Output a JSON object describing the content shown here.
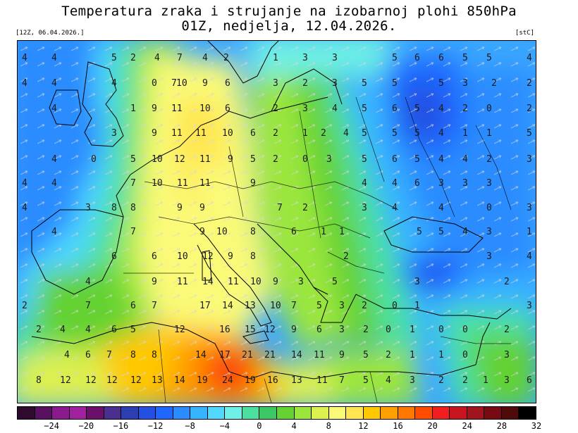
{
  "header": {
    "title_line1": "Temperatura zraka i strujanje na izobarnoj plohi 850hPa",
    "title_line2": "01Z, nedjelja, 12.04.2026.",
    "run_label": "[12Z, 06.04.2026.]",
    "unit_label": "[stC]"
  },
  "colorbar": {
    "colors": [
      "#2d0a2e",
      "#5a1060",
      "#8c1a8f",
      "#a020a0",
      "#6a0f6a",
      "#4b2f8f",
      "#2d3fb0",
      "#2350e0",
      "#1e68ff",
      "#2a8cff",
      "#38b4ff",
      "#50d8ff",
      "#6ef0e6",
      "#4be0a0",
      "#3cc864",
      "#64d232",
      "#9be63c",
      "#dcf050",
      "#fafa78",
      "#ffe650",
      "#ffc800",
      "#ffa000",
      "#ff7800",
      "#ff4b00",
      "#f01e1e",
      "#c8141e",
      "#a0141e",
      "#780a14",
      "#500a0a",
      "#000000"
    ],
    "ticks": [
      "−24",
      "−20",
      "−16",
      "−12",
      "−8",
      "−4",
      "0",
      "4",
      "8",
      "12",
      "16",
      "20",
      "24",
      "28",
      "32"
    ]
  },
  "map": {
    "legend_scale": "temperature_850hPa_stC",
    "values": [
      {
        "t": "4",
        "c": "gx0"
      },
      {
        "t": "4",
        "c": "gx1"
      },
      {
        "t": "5",
        "c": "gx2"
      },
      {
        "t": "2",
        "c": "gx3"
      },
      {
        "t": "4",
        "c": "gx4"
      },
      {
        "t": "7",
        "c": "gx5"
      },
      {
        "t": "4",
        "c": "gx6"
      },
      {
        "t": "2",
        "c": "gx7"
      },
      {
        "t": "1",
        "c": "gx8"
      },
      {
        "t": "3",
        "c": "gx9"
      },
      {
        "t": "3",
        "c": "gx10"
      },
      {
        "t": "5",
        "c": "gx11"
      },
      {
        "t": "6",
        "c": "gx12"
      },
      {
        "t": "6",
        "c": "gx13"
      },
      {
        "t": "5",
        "c": "gx14"
      },
      {
        "t": "5",
        "c": "gx15"
      },
      {
        "t": "4",
        "c": "gx16"
      },
      {
        "t": "4",
        "c": "r1a"
      },
      {
        "t": "4",
        "c": "r1b"
      },
      {
        "t": "4",
        "c": "r1c"
      },
      {
        "t": "0",
        "c": "r1d"
      },
      {
        "t": "7",
        "c": "r1e"
      },
      {
        "t": "10",
        "c": "r1f"
      },
      {
        "t": "9",
        "c": "r1g"
      },
      {
        "t": "6",
        "c": "r1h"
      },
      {
        "t": "3",
        "c": "r1i"
      },
      {
        "t": "2",
        "c": "r1j"
      },
      {
        "t": "3",
        "c": "r1k"
      },
      {
        "t": "5",
        "c": "r1l"
      },
      {
        "t": "5",
        "c": "r1m"
      },
      {
        "t": "5",
        "c": "r1n"
      },
      {
        "t": "3",
        "c": "r1o"
      },
      {
        "t": "2",
        "c": "r1p"
      },
      {
        "t": "2",
        "c": "r1q"
      },
      {
        "t": "4",
        "c": "r2a"
      },
      {
        "t": "1",
        "c": "r2b"
      },
      {
        "t": "9",
        "c": "r2c"
      },
      {
        "t": "11",
        "c": "r2d"
      },
      {
        "t": "10",
        "c": "r2e"
      },
      {
        "t": "6",
        "c": "r2f"
      },
      {
        "t": "2",
        "c": "r2g"
      },
      {
        "t": "3",
        "c": "r2h"
      },
      {
        "t": "4",
        "c": "r2i"
      },
      {
        "t": "5",
        "c": "r2j"
      },
      {
        "t": "6",
        "c": "r2k"
      },
      {
        "t": "5",
        "c": "r2l"
      },
      {
        "t": "4",
        "c": "r2m"
      },
      {
        "t": "2",
        "c": "r2n"
      },
      {
        "t": "0",
        "c": "r2o"
      },
      {
        "t": "2",
        "c": "r2p"
      },
      {
        "t": "3",
        "c": "r3a"
      },
      {
        "t": "9",
        "c": "r3b"
      },
      {
        "t": "11",
        "c": "r3c"
      },
      {
        "t": "11",
        "c": "r3d"
      },
      {
        "t": "10",
        "c": "r3e"
      },
      {
        "t": "6",
        "c": "r3f"
      },
      {
        "t": "2",
        "c": "r3g"
      },
      {
        "t": "1",
        "c": "r3h"
      },
      {
        "t": "2",
        "c": "r3i"
      },
      {
        "t": "4",
        "c": "r3j"
      },
      {
        "t": "5",
        "c": "r3k"
      },
      {
        "t": "5",
        "c": "r3l"
      },
      {
        "t": "5",
        "c": "r3m"
      },
      {
        "t": "4",
        "c": "r3n"
      },
      {
        "t": "1",
        "c": "r3o"
      },
      {
        "t": "1",
        "c": "r3p"
      },
      {
        "t": "5",
        "c": "r3q"
      },
      {
        "t": "4",
        "c": "r4a"
      },
      {
        "t": "0",
        "c": "r4b"
      },
      {
        "t": "5",
        "c": "r4c"
      },
      {
        "t": "10",
        "c": "r4d"
      },
      {
        "t": "12",
        "c": "r4e"
      },
      {
        "t": "11",
        "c": "r4f"
      },
      {
        "t": "9",
        "c": "r4g"
      },
      {
        "t": "5",
        "c": "r4h"
      },
      {
        "t": "2",
        "c": "r4i"
      },
      {
        "t": "0",
        "c": "r4j"
      },
      {
        "t": "3",
        "c": "r4k"
      },
      {
        "t": "5",
        "c": "r4l"
      },
      {
        "t": "6",
        "c": "r4m"
      },
      {
        "t": "5",
        "c": "r4n"
      },
      {
        "t": "4",
        "c": "r4o"
      },
      {
        "t": "4",
        "c": "r4p"
      },
      {
        "t": "2",
        "c": "r4q"
      },
      {
        "t": "3",
        "c": "r4r"
      },
      {
        "t": "4",
        "c": "r5a"
      },
      {
        "t": "4",
        "c": "r5b"
      },
      {
        "t": "7",
        "c": "r5c"
      },
      {
        "t": "10",
        "c": "r5d"
      },
      {
        "t": "11",
        "c": "r5e"
      },
      {
        "t": "11",
        "c": "r5f"
      },
      {
        "t": "9",
        "c": "r5g"
      },
      {
        "t": "4",
        "c": "r5h"
      },
      {
        "t": "4",
        "c": "r5i"
      },
      {
        "t": "6",
        "c": "r5j"
      },
      {
        "t": "3",
        "c": "r5k"
      },
      {
        "t": "3",
        "c": "r5l"
      },
      {
        "t": "3",
        "c": "r5m"
      },
      {
        "t": "4",
        "c": "r6a"
      },
      {
        "t": "3",
        "c": "r6b"
      },
      {
        "t": "8",
        "c": "r6c"
      },
      {
        "t": "8",
        "c": "r6d"
      },
      {
        "t": "9",
        "c": "r6e"
      },
      {
        "t": "9",
        "c": "r6f"
      },
      {
        "t": "7",
        "c": "r6g"
      },
      {
        "t": "2",
        "c": "r6h"
      },
      {
        "t": "3",
        "c": "r6i"
      },
      {
        "t": "4",
        "c": "r6j"
      },
      {
        "t": "4",
        "c": "r6k"
      },
      {
        "t": "0",
        "c": "r6l"
      },
      {
        "t": "3",
        "c": "r6m"
      },
      {
        "t": "4",
        "c": "r7a"
      },
      {
        "t": "7",
        "c": "r7b"
      },
      {
        "t": "9",
        "c": "r7c"
      },
      {
        "t": "10",
        "c": "r7d"
      },
      {
        "t": "8",
        "c": "r7e"
      },
      {
        "t": "6",
        "c": "r7f"
      },
      {
        "t": "1",
        "c": "r7g"
      },
      {
        "t": "1",
        "c": "r7h"
      },
      {
        "t": "5",
        "c": "r7i"
      },
      {
        "t": "5",
        "c": "r7j"
      },
      {
        "t": "4",
        "c": "r7k"
      },
      {
        "t": "3",
        "c": "r7l"
      },
      {
        "t": "1",
        "c": "r7m"
      },
      {
        "t": "6",
        "c": "r8a"
      },
      {
        "t": "6",
        "c": "r8b"
      },
      {
        "t": "10",
        "c": "r8c"
      },
      {
        "t": "12",
        "c": "r8d"
      },
      {
        "t": "9",
        "c": "r8e"
      },
      {
        "t": "8",
        "c": "r8f"
      },
      {
        "t": "2",
        "c": "r8g"
      },
      {
        "t": "3",
        "c": "r8h"
      },
      {
        "t": "4",
        "c": "r8i"
      },
      {
        "t": "4",
        "c": "r9a"
      },
      {
        "t": "9",
        "c": "r9b"
      },
      {
        "t": "11",
        "c": "r9c"
      },
      {
        "t": "14",
        "c": "r9d"
      },
      {
        "t": "11",
        "c": "r9e"
      },
      {
        "t": "10",
        "c": "r9f"
      },
      {
        "t": "9",
        "c": "r9g"
      },
      {
        "t": "3",
        "c": "r9h"
      },
      {
        "t": "5",
        "c": "r9i"
      },
      {
        "t": "3",
        "c": "r9j"
      },
      {
        "t": "2",
        "c": "r9k"
      },
      {
        "t": "2",
        "c": "r10a"
      },
      {
        "t": "7",
        "c": "r10b"
      },
      {
        "t": "6",
        "c": "r10c"
      },
      {
        "t": "7",
        "c": "r10d"
      },
      {
        "t": "17",
        "c": "r10e"
      },
      {
        "t": "14",
        "c": "r10f"
      },
      {
        "t": "13",
        "c": "r10g"
      },
      {
        "t": "10",
        "c": "r10h"
      },
      {
        "t": "7",
        "c": "r10i"
      },
      {
        "t": "5",
        "c": "r10j"
      },
      {
        "t": "3",
        "c": "r10k"
      },
      {
        "t": "2",
        "c": "r10l"
      },
      {
        "t": "0",
        "c": "r10m"
      },
      {
        "t": "1",
        "c": "r10n"
      },
      {
        "t": "3",
        "c": "r10o"
      },
      {
        "t": "2",
        "c": "r11a"
      },
      {
        "t": "4",
        "c": "r11b"
      },
      {
        "t": "4",
        "c": "r11c"
      },
      {
        "t": "6",
        "c": "r11d"
      },
      {
        "t": "5",
        "c": "r11e"
      },
      {
        "t": "12",
        "c": "r11f"
      },
      {
        "t": "16",
        "c": "r11g"
      },
      {
        "t": "15",
        "c": "r11h"
      },
      {
        "t": "12",
        "c": "r11i"
      },
      {
        "t": "9",
        "c": "r11j"
      },
      {
        "t": "6",
        "c": "r11k"
      },
      {
        "t": "3",
        "c": "r11l"
      },
      {
        "t": "2",
        "c": "r11m"
      },
      {
        "t": "0",
        "c": "r11n"
      },
      {
        "t": "1",
        "c": "r11o"
      },
      {
        "t": "0",
        "c": "r11p"
      },
      {
        "t": "0",
        "c": "r11q"
      },
      {
        "t": "2",
        "c": "r11r"
      },
      {
        "t": "4",
        "c": "r12a"
      },
      {
        "t": "6",
        "c": "r12b"
      },
      {
        "t": "7",
        "c": "r12c"
      },
      {
        "t": "8",
        "c": "r12d"
      },
      {
        "t": "8",
        "c": "r12e"
      },
      {
        "t": "14",
        "c": "r12f"
      },
      {
        "t": "17",
        "c": "r12g"
      },
      {
        "t": "21",
        "c": "r12h"
      },
      {
        "t": "21",
        "c": "r12i"
      },
      {
        "t": "14",
        "c": "r12j"
      },
      {
        "t": "11",
        "c": "r12k"
      },
      {
        "t": "9",
        "c": "r12l"
      },
      {
        "t": "5",
        "c": "r12m"
      },
      {
        "t": "2",
        "c": "r12n"
      },
      {
        "t": "1",
        "c": "r12o"
      },
      {
        "t": "1",
        "c": "r12p"
      },
      {
        "t": "0",
        "c": "r12q"
      },
      {
        "t": "3",
        "c": "r12r"
      },
      {
        "t": "8",
        "c": "r13a"
      },
      {
        "t": "12",
        "c": "r13b"
      },
      {
        "t": "12",
        "c": "r13c"
      },
      {
        "t": "12",
        "c": "r13d"
      },
      {
        "t": "12",
        "c": "r13e"
      },
      {
        "t": "13",
        "c": "r13f"
      },
      {
        "t": "14",
        "c": "r13g"
      },
      {
        "t": "19",
        "c": "r13h"
      },
      {
        "t": "24",
        "c": "r13i"
      },
      {
        "t": "19",
        "c": "r13j"
      },
      {
        "t": "16",
        "c": "r13k"
      },
      {
        "t": "13",
        "c": "r13l"
      },
      {
        "t": "11",
        "c": "r13m"
      },
      {
        "t": "7",
        "c": "r13n"
      },
      {
        "t": "5",
        "c": "r13o"
      },
      {
        "t": "4",
        "c": "r13p"
      },
      {
        "t": "3",
        "c": "r13q"
      },
      {
        "t": "2",
        "c": "r13r"
      },
      {
        "t": "2",
        "c": "r13s"
      },
      {
        "t": "1",
        "c": "r13t"
      },
      {
        "t": "3",
        "c": "r13u"
      },
      {
        "t": "6",
        "c": "r13v"
      }
    ]
  }
}
